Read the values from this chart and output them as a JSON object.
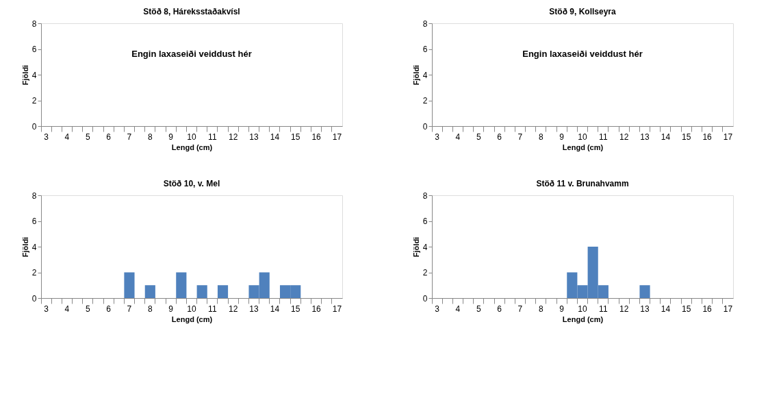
{
  "chart_data": [
    {
      "type": "bar",
      "title": "Stöð 8, Háreksstaðakvísl",
      "xlabel": "Lengd (cm)",
      "ylabel": "Fjöldi",
      "categories": [
        "3",
        null,
        "4",
        null,
        "5",
        null,
        "6",
        null,
        "7",
        null,
        "8",
        null,
        "9",
        null,
        "10",
        null,
        "11",
        null,
        "12",
        null,
        "13",
        null,
        "14",
        null,
        "15",
        null,
        "16",
        null,
        "17"
      ],
      "values": [
        0,
        0,
        0,
        0,
        0,
        0,
        0,
        0,
        0,
        0,
        0,
        0,
        0,
        0,
        0,
        0,
        0,
        0,
        0,
        0,
        0,
        0,
        0,
        0,
        0,
        0,
        0,
        0,
        0
      ],
      "color": "#4f81bd",
      "ylim": [
        0,
        8
      ],
      "yticks": [
        0,
        2,
        4,
        6,
        8
      ],
      "grid": false,
      "annotations": [
        "Engin laxaseiði veiddust hér"
      ]
    },
    {
      "type": "bar",
      "title": "Stöð 9, Kollseyra",
      "xlabel": "Lengd (cm)",
      "ylabel": "Fjöldi",
      "categories": [
        "3",
        null,
        "4",
        null,
        "5",
        null,
        "6",
        null,
        "7",
        null,
        "8",
        null,
        "9",
        null,
        "10",
        null,
        "11",
        null,
        "12",
        null,
        "13",
        null,
        "14",
        null,
        "15",
        null,
        "16",
        null,
        "17"
      ],
      "values": [
        0,
        0,
        0,
        0,
        0,
        0,
        0,
        0,
        0,
        0,
        0,
        0,
        0,
        0,
        0,
        0,
        0,
        0,
        0,
        0,
        0,
        0,
        0,
        0,
        0,
        0,
        0,
        0,
        0
      ],
      "color": "#4f81bd",
      "ylim": [
        0,
        8
      ],
      "yticks": [
        0,
        2,
        4,
        6,
        8
      ],
      "grid": false,
      "annotations": [
        "Engin laxaseiði veiddust hér"
      ]
    },
    {
      "type": "bar",
      "title": "Stöð 10, v. Mel",
      "xlabel": "Lengd (cm)",
      "ylabel": "Fjöldi",
      "categories": [
        "3",
        null,
        "4",
        null,
        "5",
        null,
        "6",
        null,
        "7",
        null,
        "8",
        null,
        "9",
        null,
        "10",
        null,
        "11",
        null,
        "12",
        null,
        "13",
        null,
        "14",
        null,
        "15",
        null,
        "16",
        null,
        "17"
      ],
      "values": [
        0,
        0,
        0,
        0,
        0,
        0,
        0,
        0,
        2,
        0,
        1,
        0,
        0,
        2,
        0,
        1,
        0,
        1,
        0,
        0,
        1,
        2,
        0,
        1,
        1,
        0,
        0,
        0,
        0
      ],
      "color": "#4f81bd",
      "ylim": [
        0,
        8
      ],
      "yticks": [
        0,
        2,
        4,
        6,
        8
      ],
      "grid": false
    },
    {
      "type": "bar",
      "title": "Stöð 11 v. Brunahvamm",
      "xlabel": "Lengd (cm)",
      "ylabel": "Fjöldi",
      "categories": [
        "3",
        null,
        "4",
        null,
        "5",
        null,
        "6",
        null,
        "7",
        null,
        "8",
        null,
        "9",
        null,
        "10",
        null,
        "11",
        null,
        "12",
        null,
        "13",
        null,
        "14",
        null,
        "15",
        null,
        "16",
        null,
        "17"
      ],
      "values": [
        0,
        0,
        0,
        0,
        0,
        0,
        0,
        0,
        0,
        0,
        0,
        0,
        0,
        2,
        1,
        4,
        1,
        0,
        0,
        0,
        1,
        0,
        0,
        0,
        0,
        0,
        0,
        0,
        0
      ],
      "color": "#4f81bd",
      "ylim": [
        0,
        8
      ],
      "yticks": [
        0,
        2,
        4,
        6,
        8
      ],
      "grid": false
    }
  ]
}
